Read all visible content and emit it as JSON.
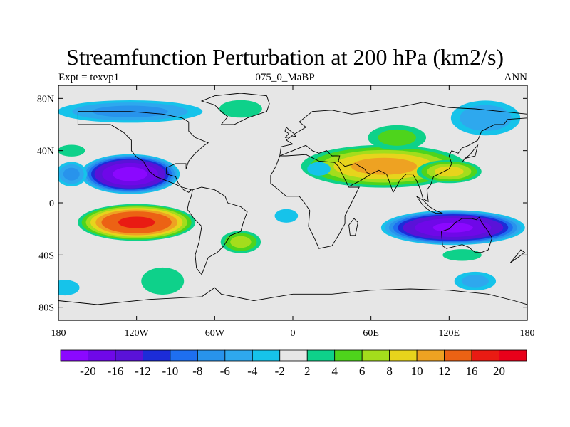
{
  "title": "Streamfunction Perturbation at 200 hPa (km2/s)",
  "subtitle_left": "Expt = texvp1",
  "subtitle_center": "075_0_MaBP",
  "subtitle_right": "ANN",
  "map": {
    "lon_range": [
      -180,
      180
    ],
    "lat_range": [
      -90,
      90
    ],
    "lat_ticks": [
      {
        "value": 80,
        "label": "80N"
      },
      {
        "value": 40,
        "label": "40N"
      },
      {
        "value": 0,
        "label": "0"
      },
      {
        "value": -40,
        "label": "40S"
      },
      {
        "value": -80,
        "label": "80S"
      }
    ],
    "lon_ticks": [
      {
        "value": -180,
        "label": "180"
      },
      {
        "value": -120,
        "label": "120W"
      },
      {
        "value": -60,
        "label": "60W"
      },
      {
        "value": 0,
        "label": "0"
      },
      {
        "value": 60,
        "label": "60E"
      },
      {
        "value": 120,
        "label": "120E"
      },
      {
        "value": 180,
        "label": "180"
      }
    ],
    "background_color": "#e6e6e6",
    "features": [
      {
        "lon": -125,
        "lat": 22,
        "rx": 40,
        "ry": 16,
        "peak": -21
      },
      {
        "lon": -170,
        "lat": 22,
        "rx": 14,
        "ry": 11,
        "peak": -6
      },
      {
        "lon": -120,
        "lat": -15,
        "rx": 48,
        "ry": 15,
        "peak": 16
      },
      {
        "lon": -40,
        "lat": -30,
        "rx": 18,
        "ry": 10,
        "peak": 6
      },
      {
        "lon": 70,
        "lat": 28,
        "rx": 70,
        "ry": 18,
        "peak": 10
      },
      {
        "lon": 120,
        "lat": 24,
        "rx": 28,
        "ry": 10,
        "peak": 8
      },
      {
        "lon": 80,
        "lat": 50,
        "rx": 28,
        "ry": 12,
        "peak": 4
      },
      {
        "lon": 123,
        "lat": -19,
        "rx": 58,
        "ry": 14,
        "peak": -20
      },
      {
        "lon": -125,
        "lat": 70,
        "rx": 65,
        "ry": 10,
        "peak": -6
      },
      {
        "lon": -40,
        "lat": 72,
        "rx": 22,
        "ry": 9,
        "peak": 3
      },
      {
        "lon": 148,
        "lat": 65,
        "rx": 32,
        "ry": 16,
        "peak": -5
      },
      {
        "lon": -100,
        "lat": -60,
        "rx": 22,
        "ry": 14,
        "peak": 3
      },
      {
        "lon": 140,
        "lat": -60,
        "rx": 20,
        "ry": 9,
        "peak": -4
      },
      {
        "lon": 130,
        "lat": -40,
        "rx": 20,
        "ry": 6,
        "peak": 3
      },
      {
        "lon": -5,
        "lat": -10,
        "rx": 12,
        "ry": 7,
        "peak": -3
      },
      {
        "lon": 20,
        "lat": 26,
        "rx": 12,
        "ry": 7,
        "peak": -3
      },
      {
        "lon": -170,
        "lat": 40,
        "rx": 14,
        "ry": 6,
        "peak": 3
      },
      {
        "lon": -175,
        "lat": -65,
        "rx": 15,
        "ry": 8,
        "peak": -3
      }
    ],
    "coastlines": [
      [
        [
          -165,
          70
        ],
        [
          -140,
          70
        ],
        [
          -125,
          70
        ],
        [
          -100,
          68
        ],
        [
          -85,
          65
        ],
        [
          -80,
          62
        ],
        [
          -80,
          55
        ],
        [
          -75,
          50
        ],
        [
          -65,
          46
        ],
        [
          -68,
          44
        ],
        [
          -75,
          38
        ],
        [
          -80,
          32
        ],
        [
          -82,
          26
        ],
        [
          -82,
          30
        ],
        [
          -90,
          30
        ],
        [
          -97,
          27
        ],
        [
          -97,
          22
        ],
        [
          -90,
          20
        ],
        [
          -88,
          15
        ],
        [
          -84,
          10
        ],
        [
          -80,
          8
        ],
        [
          -78,
          10
        ],
        [
          -85,
          12
        ],
        [
          -92,
          15
        ],
        [
          -105,
          20
        ],
        [
          -110,
          24
        ],
        [
          -115,
          32
        ],
        [
          -120,
          35
        ],
        [
          -124,
          40
        ],
        [
          -124,
          48
        ],
        [
          -130,
          54
        ],
        [
          -140,
          60
        ],
        [
          -150,
          60
        ],
        [
          -165,
          60
        ],
        [
          -165,
          65
        ],
        [
          -165,
          70
        ]
      ],
      [
        [
          -77,
          10
        ],
        [
          -70,
          12
        ],
        [
          -60,
          10
        ],
        [
          -52,
          5
        ],
        [
          -50,
          0
        ],
        [
          -40,
          -3
        ],
        [
          -35,
          -7
        ],
        [
          -38,
          -15
        ],
        [
          -40,
          -22
        ],
        [
          -48,
          -25
        ],
        [
          -53,
          -33
        ],
        [
          -58,
          -38
        ],
        [
          -65,
          -42
        ],
        [
          -68,
          -50
        ],
        [
          -70,
          -55
        ],
        [
          -74,
          -50
        ],
        [
          -75,
          -40
        ],
        [
          -72,
          -30
        ],
        [
          -70,
          -18
        ],
        [
          -76,
          -12
        ],
        [
          -81,
          -5
        ],
        [
          -80,
          0
        ],
        [
          -78,
          5
        ],
        [
          -77,
          10
        ]
      ],
      [
        [
          -55,
          60
        ],
        [
          -45,
          60
        ],
        [
          -35,
          65
        ],
        [
          -20,
          70
        ],
        [
          -18,
          76
        ],
        [
          -20,
          82
        ],
        [
          -40,
          84
        ],
        [
          -60,
          82
        ],
        [
          -70,
          78
        ],
        [
          -60,
          75
        ],
        [
          -55,
          70
        ],
        [
          -50,
          66
        ],
        [
          -55,
          60
        ]
      ],
      [
        [
          -10,
          36
        ],
        [
          -5,
          36
        ],
        [
          10,
          37
        ],
        [
          20,
          32
        ],
        [
          32,
          31
        ],
        [
          35,
          28
        ],
        [
          43,
          12
        ],
        [
          51,
          12
        ],
        [
          45,
          0
        ],
        [
          40,
          -10
        ],
        [
          40,
          -16
        ],
        [
          35,
          -25
        ],
        [
          30,
          -33
        ],
        [
          20,
          -35
        ],
        [
          17,
          -28
        ],
        [
          12,
          -18
        ],
        [
          13,
          -6
        ],
        [
          9,
          0
        ],
        [
          5,
          5
        ],
        [
          -5,
          5
        ],
        [
          -17,
          15
        ],
        [
          -17,
          21
        ],
        [
          -13,
          28
        ],
        [
          -10,
          36
        ]
      ],
      [
        [
          -10,
          36
        ],
        [
          -9,
          43
        ],
        [
          0,
          45
        ],
        [
          -5,
          48
        ],
        [
          0,
          52
        ],
        [
          5,
          55
        ],
        [
          10,
          58
        ],
        [
          5,
          62
        ],
        [
          15,
          70
        ],
        [
          30,
          71
        ],
        [
          45,
          68
        ],
        [
          60,
          70
        ],
        [
          80,
          73
        ],
        [
          100,
          77
        ],
        [
          120,
          73
        ],
        [
          140,
          72
        ],
        [
          160,
          70
        ],
        [
          180,
          68
        ]
      ],
      [
        [
          -10,
          36
        ],
        [
          0,
          40
        ],
        [
          10,
          44
        ],
        [
          15,
          40
        ],
        [
          20,
          38
        ],
        [
          26,
          40
        ],
        [
          30,
          36
        ],
        [
          36,
          36
        ],
        [
          35,
          32
        ],
        [
          40,
          28
        ],
        [
          48,
          30
        ],
        [
          55,
          26
        ],
        [
          57,
          23
        ],
        [
          60,
          22
        ],
        [
          52,
          17
        ],
        [
          44,
          13
        ]
      ],
      [
        [
          60,
          22
        ],
        [
          66,
          25
        ],
        [
          72,
          22
        ],
        [
          77,
          8
        ],
        [
          80,
          13
        ],
        [
          82,
          17
        ],
        [
          87,
          22
        ],
        [
          92,
          22
        ],
        [
          95,
          17
        ],
        [
          98,
          10
        ],
        [
          100,
          3
        ],
        [
          104,
          1
        ],
        [
          103,
          10
        ],
        [
          106,
          14
        ],
        [
          108,
          20
        ],
        [
          112,
          22
        ],
        [
          120,
          26
        ],
        [
          122,
          30
        ],
        [
          120,
          36
        ],
        [
          122,
          40
        ],
        [
          127,
          38
        ],
        [
          130,
          42
        ],
        [
          135,
          44
        ],
        [
          142,
          48
        ],
        [
          145,
          55
        ],
        [
          155,
          60
        ],
        [
          162,
          60
        ],
        [
          165,
          64
        ],
        [
          180,
          65
        ]
      ],
      [
        [
          114,
          -22
        ],
        [
          120,
          -20
        ],
        [
          125,
          -15
        ],
        [
          130,
          -12
        ],
        [
          137,
          -12
        ],
        [
          141,
          -13
        ],
        [
          143,
          -11
        ],
        [
          145,
          -15
        ],
        [
          150,
          -22
        ],
        [
          153,
          -27
        ],
        [
          150,
          -36
        ],
        [
          145,
          -38
        ],
        [
          140,
          -38
        ],
        [
          135,
          -34
        ],
        [
          130,
          -32
        ],
        [
          118,
          -35
        ],
        [
          115,
          -33
        ],
        [
          114,
          -22
        ]
      ],
      [
        [
          44,
          -25
        ],
        [
          48,
          -25
        ],
        [
          50,
          -15
        ],
        [
          47,
          -12
        ],
        [
          43,
          -17
        ],
        [
          44,
          -25
        ]
      ],
      [
        [
          -180,
          -75
        ],
        [
          -150,
          -78
        ],
        [
          -110,
          -74
        ],
        [
          -70,
          -72
        ],
        [
          -60,
          -65
        ],
        [
          -55,
          -70
        ],
        [
          -30,
          -75
        ],
        [
          0,
          -70
        ],
        [
          30,
          -70
        ],
        [
          60,
          -67
        ],
        [
          90,
          -66
        ],
        [
          120,
          -67
        ],
        [
          150,
          -70
        ],
        [
          170,
          -75
        ],
        [
          180,
          -78
        ]
      ],
      [
        [
          -6,
          50
        ],
        [
          2,
          51
        ],
        [
          1,
          53
        ],
        [
          -3,
          56
        ],
        [
          -5,
          58
        ],
        [
          -6,
          55
        ],
        [
          -3,
          53
        ],
        [
          -6,
          50
        ]
      ],
      [
        [
          130,
          31
        ],
        [
          132,
          34
        ],
        [
          136,
          35
        ],
        [
          140,
          36
        ],
        [
          141,
          40
        ],
        [
          142,
          44
        ],
        [
          140,
          42
        ],
        [
          136,
          37
        ],
        [
          132,
          34
        ],
        [
          130,
          31
        ]
      ],
      [
        [
          167,
          -46
        ],
        [
          174,
          -41
        ],
        [
          178,
          -38
        ],
        [
          175,
          -36
        ],
        [
          172,
          -40
        ],
        [
          167,
          -46
        ]
      ],
      [
        [
          95,
          5
        ],
        [
          100,
          -2
        ],
        [
          105,
          -6
        ],
        [
          110,
          -8
        ],
        [
          115,
          -8
        ],
        [
          110,
          -6
        ],
        [
          105,
          -3
        ],
        [
          100,
          2
        ],
        [
          95,
          5
        ]
      ]
    ]
  },
  "colorbar": {
    "labels": [
      "-20",
      "-16",
      "-12",
      "-10",
      "-8",
      "-6",
      "-4",
      "-2",
      "2",
      "4",
      "6",
      "8",
      "10",
      "12",
      "16",
      "20"
    ],
    "levels": [
      -20,
      -16,
      -12,
      -10,
      -8,
      -6,
      -4,
      -2,
      2,
      4,
      6,
      8,
      10,
      12,
      16,
      20
    ],
    "colors": [
      "#8b08ff",
      "#6f08e8",
      "#5a12d8",
      "#1c2cd8",
      "#1e6ff0",
      "#2893ec",
      "#2ea8ee",
      "#16c3ea",
      "#e6e6e6",
      "#0ed18a",
      "#4ed41c",
      "#a4dd1c",
      "#e7d41c",
      "#eea222",
      "#ec6214",
      "#e91b13",
      "#e8001a"
    ]
  }
}
